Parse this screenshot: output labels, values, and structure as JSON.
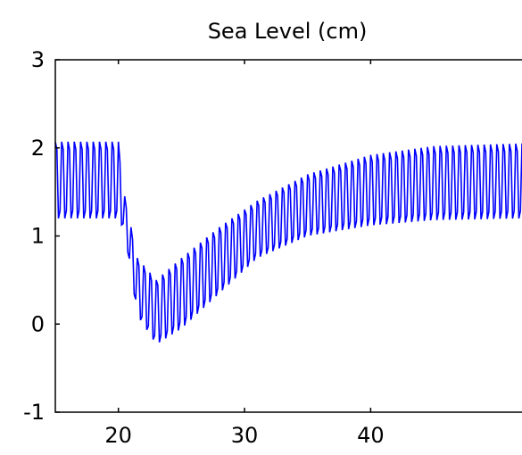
{
  "chart_data": {
    "type": "line",
    "title": "Sea Level (cm)",
    "xlabel": "",
    "ylabel": "",
    "xlim": [
      15,
      52
    ],
    "ylim": [
      -1,
      3
    ],
    "x_ticks": [
      20,
      30,
      40
    ],
    "y_ticks": [
      -1,
      0,
      1,
      2,
      3
    ],
    "x_tick_labels": [
      "20",
      "30",
      "40"
    ],
    "y_tick_labels": [
      "-1",
      "0",
      "1",
      "2",
      "3"
    ],
    "grid": false,
    "series": [
      {
        "color": "#0000ff",
        "description_points": {
          "x": [
            15,
            20,
            20.5,
            21.5,
            23,
            25,
            28,
            31,
            35,
            40,
            45,
            52
          ],
          "upper": [
            2.07,
            2.07,
            1.45,
            0.75,
            0.5,
            0.75,
            1.1,
            1.4,
            1.7,
            1.92,
            2.02,
            2.05
          ],
          "lower": [
            1.2,
            1.2,
            1.05,
            0.1,
            -0.23,
            -0.05,
            0.35,
            0.75,
            1.0,
            1.12,
            1.18,
            1.2
          ]
        },
        "oscillation_period": 0.5
      }
    ]
  }
}
